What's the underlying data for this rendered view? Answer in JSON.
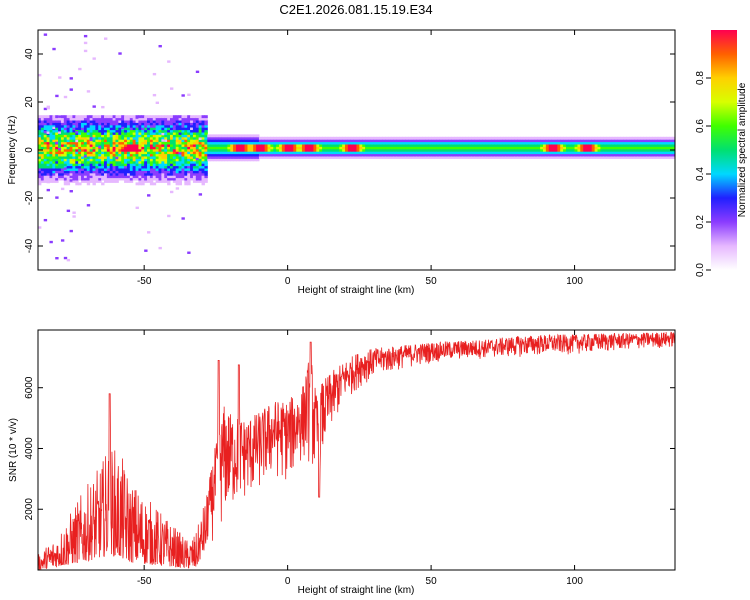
{
  "title": "C2E1.2026.081.15.19.E34",
  "chart_data": [
    {
      "type": "heatmap",
      "name": "spectrogram",
      "xlabel": "Height of straight line (km)",
      "ylabel": "Frequency (Hz)",
      "xlim": [
        -87,
        135
      ],
      "ylim": [
        -50,
        50
      ],
      "xticks": [
        -50,
        0,
        50,
        100
      ],
      "xtick_labels": [
        "-50",
        "0",
        "50",
        "100"
      ],
      "yticks": [
        -40,
        -20,
        0,
        20,
        40
      ],
      "ytick_labels": [
        "-40",
        "-20",
        "0",
        "20",
        "40"
      ],
      "colorbar": {
        "label": "Normalized spectral amplitude",
        "range": [
          0,
          1
        ],
        "ticks": [
          0,
          0.2,
          0.4,
          0.6,
          0.8
        ],
        "tick_labels": [
          "0.0",
          "0.2",
          "0.4",
          "0.6",
          "0.8"
        ],
        "colors": [
          "#ffffff",
          "#e6b8ff",
          "#8b3cff",
          "#2020ff",
          "#00d8ff",
          "#00e070",
          "#40ff00",
          "#d8ff00",
          "#ffd000",
          "#ff6000",
          "#ff0050"
        ]
      },
      "band_center_hz": 1,
      "hot_spots_km": [
        -55,
        -17,
        -10,
        0,
        7,
        22,
        92,
        104
      ]
    },
    {
      "type": "line",
      "name": "snr",
      "xlabel": "Height of straight line (km)",
      "ylabel": "SNR (10 * v/v)",
      "xlim": [
        -87,
        135
      ],
      "ylim": [
        0,
        7900
      ],
      "xticks": [
        -50,
        0,
        50,
        100
      ],
      "xtick_labels": [
        "-50",
        "0",
        "50",
        "100"
      ],
      "yticks": [
        2000,
        4000,
        6000
      ],
      "ytick_labels": [
        "2000",
        "4000",
        "6000"
      ],
      "color": "#e82020",
      "envelope": {
        "x": [
          -87,
          -80,
          -72,
          -65,
          -62,
          -58,
          -55,
          -50,
          -45,
          -40,
          -35,
          -32,
          -28,
          -25,
          -22,
          -20,
          -15,
          -10,
          -5,
          0,
          5,
          8,
          10,
          12,
          15,
          20,
          25,
          30,
          40,
          50,
          60,
          70,
          80,
          90,
          100,
          110,
          120,
          135
        ],
        "low": [
          0,
          100,
          250,
          400,
          500,
          350,
          250,
          200,
          150,
          100,
          50,
          50,
          800,
          1000,
          1500,
          1800,
          2200,
          2500,
          3000,
          2800,
          3500,
          3500,
          2500,
          3500,
          4500,
          5500,
          6000,
          6300,
          6600,
          6800,
          6900,
          6950,
          7000,
          7050,
          7100,
          7150,
          7250,
          7300
        ],
        "high": [
          500,
          1200,
          2500,
          3500,
          4200,
          3800,
          3000,
          2500,
          2000,
          1500,
          1000,
          1200,
          2600,
          4200,
          5500,
          5200,
          5000,
          5200,
          5600,
          5600,
          6000,
          7200,
          5800,
          6200,
          6500,
          6900,
          7200,
          7300,
          7400,
          7500,
          7550,
          7600,
          7700,
          7750,
          7750,
          7800,
          7800,
          7850
        ]
      },
      "spikes": [
        {
          "x": -62,
          "y": 5800
        },
        {
          "x": -24,
          "y": 6900
        },
        {
          "x": -17,
          "y": 6750
        },
        {
          "x": 8,
          "y": 7500
        },
        {
          "x": 11,
          "y": 2400
        }
      ]
    }
  ]
}
